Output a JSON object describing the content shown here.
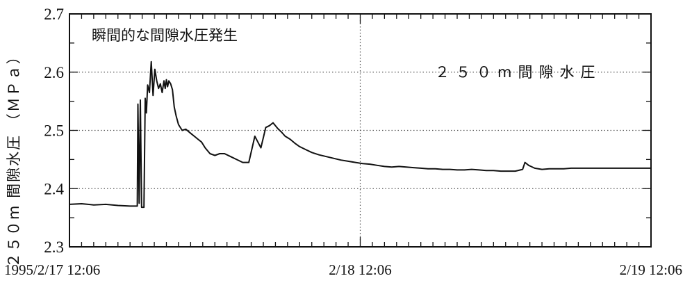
{
  "chart_data": {
    "type": "line",
    "ylabel": "２５０m 間隙水圧 （ＭＰａ）",
    "annotations": {
      "event": "瞬間的な間隙水圧発生",
      "series_label": "２５０m間隙水圧"
    },
    "ylim": [
      2.3,
      2.7
    ],
    "yticks": [
      "2.3",
      "2.4",
      "2.5",
      "2.6",
      "2.7"
    ],
    "xlim": [
      0,
      48
    ],
    "xtick_labels": [
      {
        "x": 0,
        "label": "1995/2/17  12:06"
      },
      {
        "x": 24,
        "label": "2/18  12:06"
      },
      {
        "x": 48,
        "label": "2/19  12:06"
      }
    ],
    "grid": "dotted",
    "series": [
      {
        "x": [
          0,
          1,
          2,
          3,
          4,
          5,
          5.6,
          5.65,
          5.75,
          5.85,
          5.95,
          6.05,
          6.15,
          6.25,
          6.35,
          6.45,
          6.6,
          6.75,
          6.9,
          7.05,
          7.2,
          7.35,
          7.5,
          7.65,
          7.8,
          7.9,
          8.0,
          8.1,
          8.2,
          8.35,
          8.5,
          8.65,
          8.8,
          9.0,
          9.3,
          9.6,
          10.0,
          10.3,
          10.6,
          10.9,
          11.2,
          11.6,
          12.0,
          12.4,
          12.8,
          13.3,
          13.8,
          14.3,
          14.8,
          15.3,
          15.8,
          16.2,
          16.5,
          16.8,
          17.2,
          17.5,
          17.8,
          18.2,
          18.6,
          19.0,
          19.5,
          20.0,
          20.6,
          21.2,
          21.8,
          22.4,
          23.0,
          23.6,
          24.2,
          24.8,
          25.4,
          26.0,
          26.6,
          27.2,
          27.8,
          28.4,
          29.0,
          29.6,
          30.2,
          30.8,
          31.4,
          32.0,
          32.6,
          33.2,
          33.8,
          34.4,
          35.0,
          35.6,
          36.2,
          36.8,
          37.4,
          37.6,
          37.9,
          38.4,
          39.0,
          39.6,
          40.2,
          40.8,
          41.4,
          42.0,
          43.0,
          44.0,
          45.0,
          46.0,
          47.0,
          48.0
        ],
        "values": [
          2.373,
          2.374,
          2.372,
          2.373,
          2.371,
          2.37,
          2.37,
          2.545,
          2.375,
          2.552,
          2.368,
          2.368,
          2.368,
          2.555,
          2.53,
          2.578,
          2.565,
          2.618,
          2.56,
          2.605,
          2.585,
          2.572,
          2.58,
          2.565,
          2.585,
          2.572,
          2.587,
          2.575,
          2.585,
          2.58,
          2.57,
          2.54,
          2.525,
          2.51,
          2.5,
          2.502,
          2.495,
          2.49,
          2.485,
          2.48,
          2.47,
          2.46,
          2.457,
          2.46,
          2.46,
          2.455,
          2.45,
          2.445,
          2.445,
          2.49,
          2.47,
          2.505,
          2.508,
          2.513,
          2.503,
          2.497,
          2.49,
          2.485,
          2.478,
          2.472,
          2.467,
          2.462,
          2.458,
          2.455,
          2.452,
          2.449,
          2.447,
          2.445,
          2.443,
          2.442,
          2.44,
          2.438,
          2.437,
          2.438,
          2.437,
          2.436,
          2.435,
          2.434,
          2.434,
          2.433,
          2.433,
          2.432,
          2.432,
          2.433,
          2.432,
          2.431,
          2.431,
          2.43,
          2.43,
          2.43,
          2.433,
          2.445,
          2.44,
          2.435,
          2.433,
          2.434,
          2.434,
          2.434,
          2.435,
          2.435,
          2.435,
          2.435,
          2.435,
          2.435,
          2.435,
          2.435
        ]
      }
    ]
  }
}
